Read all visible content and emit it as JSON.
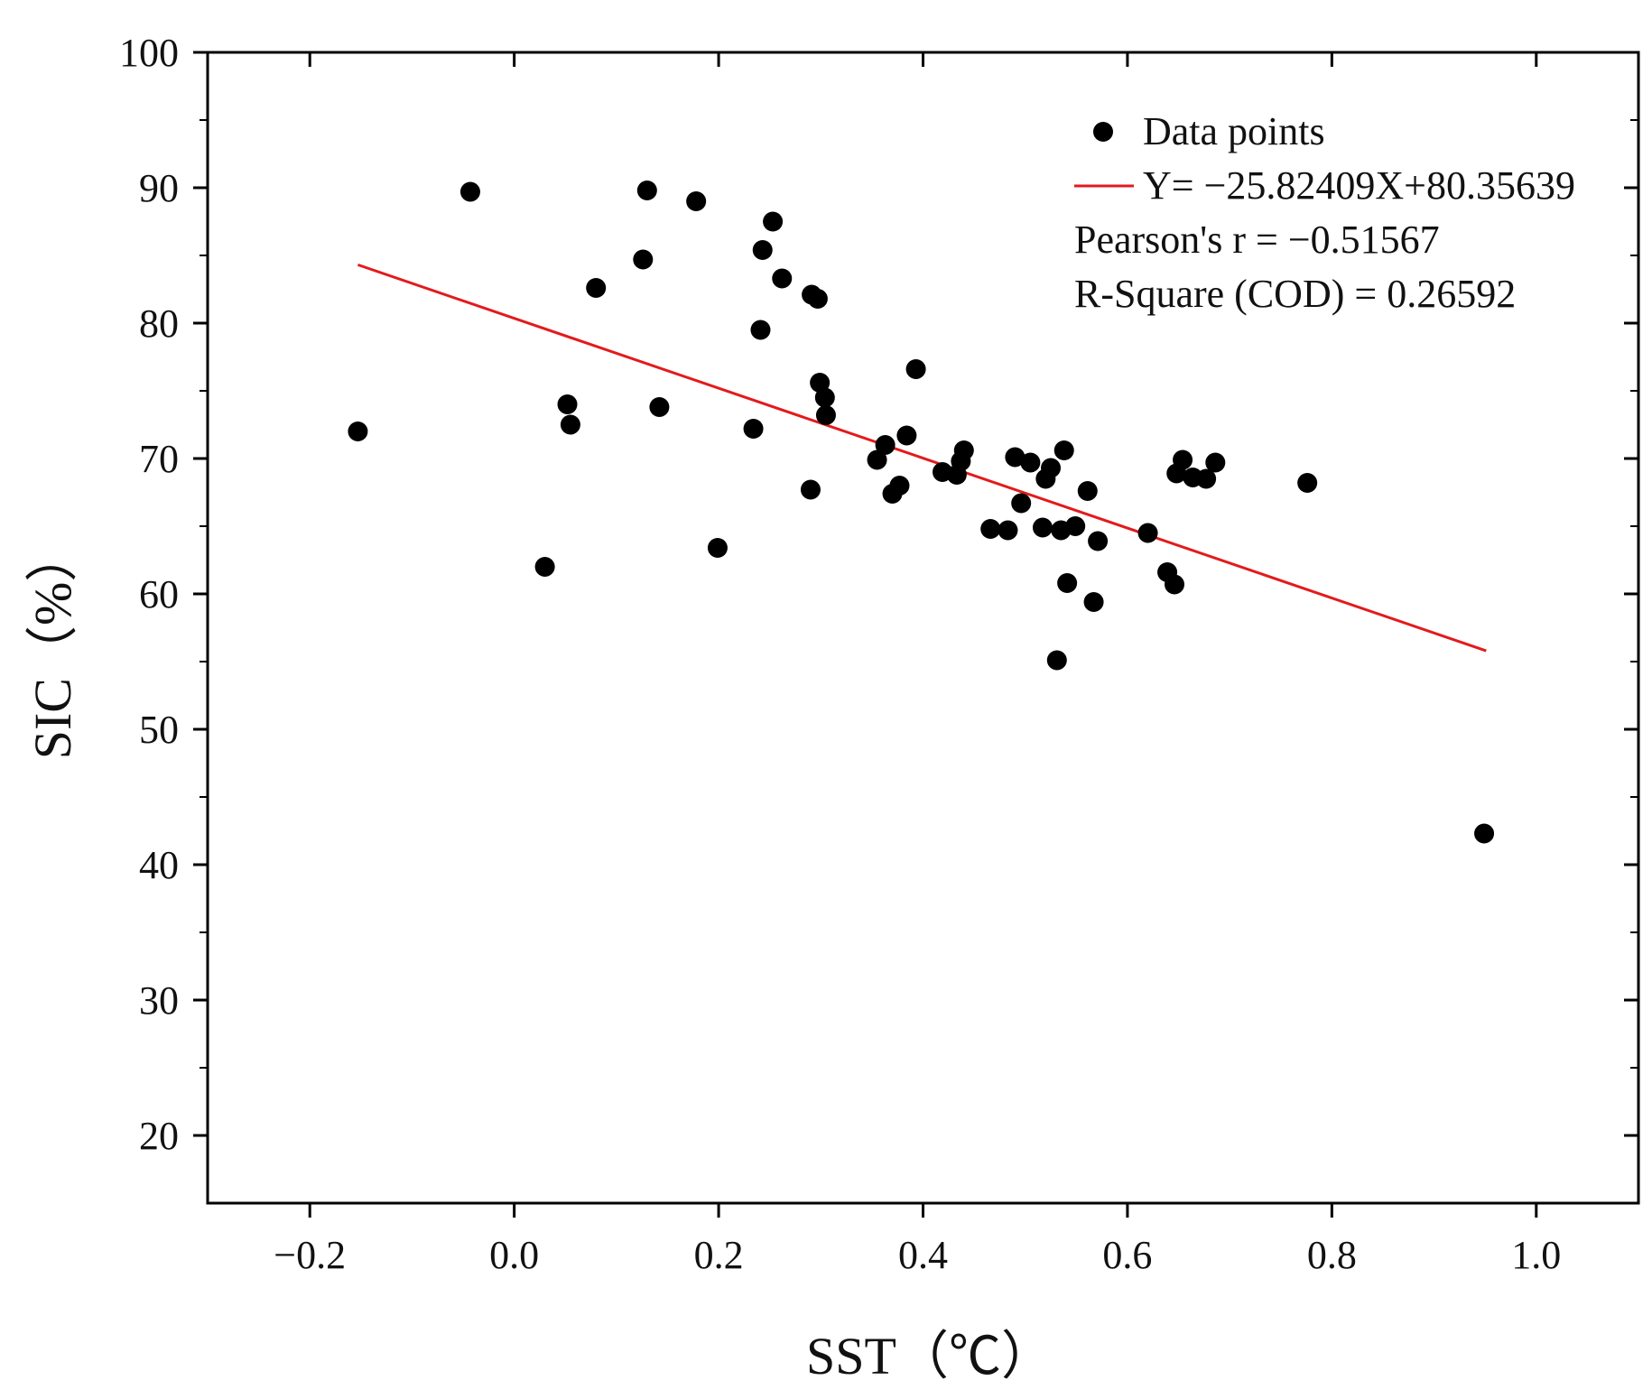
{
  "chart_data": {
    "type": "scatter",
    "title": "",
    "xlabel": "SST（℃）",
    "ylabel": "SIC（%）",
    "xlim": [
      -0.3,
      1.1
    ],
    "ylim": [
      15,
      100
    ],
    "x_ticks": [
      -0.2,
      0.0,
      0.2,
      0.4,
      0.6,
      0.8,
      1.0
    ],
    "x_tick_labels": [
      "−0.2",
      "0.0",
      "0.2",
      "0.4",
      "0.6",
      "0.8",
      "1.0"
    ],
    "y_ticks": [
      20,
      30,
      40,
      50,
      60,
      70,
      80,
      90,
      100
    ],
    "y_tick_labels": [
      "20",
      "30",
      "40",
      "50",
      "60",
      "70",
      "80",
      "90",
      "100"
    ],
    "legend_position": "top-right",
    "series": [
      {
        "name": "Data points",
        "kind": "scatter",
        "color": "#000000",
        "points": [
          [
            -0.153,
            72.0
          ],
          [
            -0.043,
            89.7
          ],
          [
            0.03,
            62.0
          ],
          [
            0.052,
            74.0
          ],
          [
            0.055,
            72.5
          ],
          [
            0.08,
            82.6
          ],
          [
            0.126,
            84.7
          ],
          [
            0.13,
            89.8
          ],
          [
            0.142,
            73.8
          ],
          [
            0.178,
            89.0
          ],
          [
            0.199,
            63.4
          ],
          [
            0.234,
            72.2
          ],
          [
            0.241,
            79.5
          ],
          [
            0.243,
            85.4
          ],
          [
            0.253,
            87.5
          ],
          [
            0.262,
            83.3
          ],
          [
            0.29,
            67.7
          ],
          [
            0.291,
            82.1
          ],
          [
            0.297,
            81.8
          ],
          [
            0.299,
            75.6
          ],
          [
            0.304,
            74.5
          ],
          [
            0.305,
            73.2
          ],
          [
            0.355,
            69.9
          ],
          [
            0.363,
            71.0
          ],
          [
            0.37,
            67.4
          ],
          [
            0.377,
            68.0
          ],
          [
            0.384,
            71.7
          ],
          [
            0.393,
            76.6
          ],
          [
            0.419,
            69.0
          ],
          [
            0.433,
            68.8
          ],
          [
            0.437,
            69.8
          ],
          [
            0.44,
            70.6
          ],
          [
            0.466,
            64.8
          ],
          [
            0.483,
            64.7
          ],
          [
            0.49,
            70.1
          ],
          [
            0.496,
            66.7
          ],
          [
            0.505,
            69.7
          ],
          [
            0.517,
            64.9
          ],
          [
            0.52,
            68.5
          ],
          [
            0.525,
            69.3
          ],
          [
            0.531,
            55.1
          ],
          [
            0.535,
            64.7
          ],
          [
            0.538,
            70.6
          ],
          [
            0.541,
            60.8
          ],
          [
            0.549,
            65.0
          ],
          [
            0.561,
            67.6
          ],
          [
            0.567,
            59.4
          ],
          [
            0.571,
            63.9
          ],
          [
            0.62,
            64.5
          ],
          [
            0.639,
            61.6
          ],
          [
            0.646,
            60.7
          ],
          [
            0.648,
            68.9
          ],
          [
            0.654,
            69.9
          ],
          [
            0.664,
            68.6
          ],
          [
            0.677,
            68.5
          ],
          [
            0.686,
            69.7
          ],
          [
            0.776,
            68.2
          ],
          [
            0.949,
            42.3
          ]
        ]
      },
      {
        "name": "Y= −25.82409X+80.35639",
        "kind": "line",
        "color": "#e31a1c",
        "slope": -25.82409,
        "intercept": 80.35639,
        "x_range": [
          -0.153,
          0.951
        ]
      }
    ],
    "annotations": [
      "Pearson's r = −0.51567",
      "R-Square (COD) = 0.26592"
    ]
  }
}
